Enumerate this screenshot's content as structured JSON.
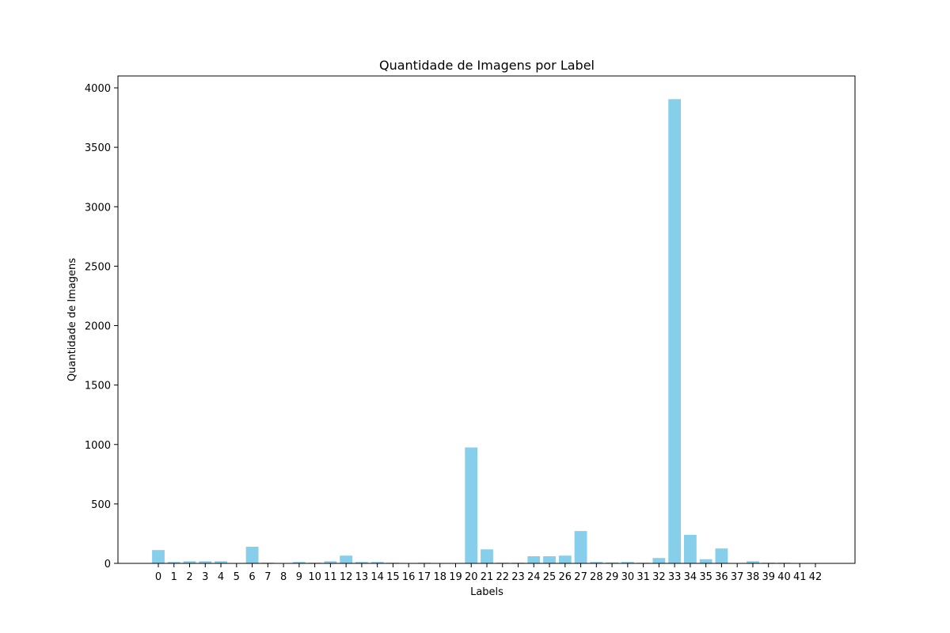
{
  "chart_data": {
    "type": "bar",
    "title": "Quantidade de Imagens por Label",
    "xlabel": "Labels",
    "ylabel": "Quantidade de Imagens",
    "ylim": [
      0,
      4100
    ],
    "yticks": [
      0,
      500,
      1000,
      1500,
      2000,
      2500,
      3000,
      3500,
      4000
    ],
    "grid": false,
    "bar_color": "#87ceeb",
    "categories": [
      "0",
      "1",
      "2",
      "3",
      "4",
      "5",
      "6",
      "7",
      "8",
      "9",
      "10",
      "11",
      "12",
      "13",
      "14",
      "15",
      "16",
      "17",
      "18",
      "19",
      "20",
      "21",
      "22",
      "23",
      "24",
      "25",
      "26",
      "27",
      "28",
      "29",
      "30",
      "31",
      "32",
      "33",
      "34",
      "35",
      "36",
      "37",
      "38",
      "39",
      "40",
      "41",
      "42"
    ],
    "values": [
      112,
      12,
      18,
      18,
      18,
      2,
      140,
      6,
      2,
      12,
      6,
      18,
      65,
      12,
      12,
      6,
      2,
      6,
      2,
      2,
      975,
      118,
      6,
      6,
      60,
      60,
      65,
      272,
      12,
      8,
      12,
      6,
      45,
      3905,
      240,
      35,
      125,
      2,
      18,
      6,
      6,
      2,
      2
    ]
  }
}
